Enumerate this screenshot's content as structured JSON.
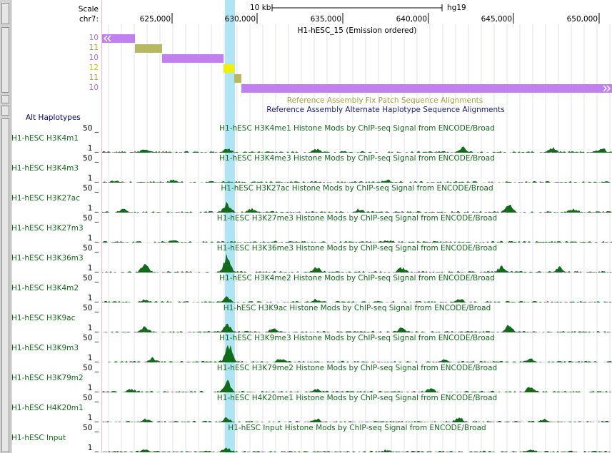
{
  "header": {
    "scale_label": "Scale",
    "chrom_label": "chr7:",
    "scale_bar_text": "10 kb",
    "assembly": "hg19",
    "ticks": [
      "625,000",
      "630,000",
      "635,000",
      "640,000",
      "645,000",
      "650,000"
    ],
    "chromhmm_title": "H1-hESC_15 (Emission ordered)"
  },
  "chromhmm_rows": [
    {
      "state": "10",
      "color": "#c080f0"
    },
    {
      "state": "11",
      "color": "#b8b860"
    },
    {
      "state": "10",
      "color": "#c080f0"
    },
    {
      "state": "12",
      "color": "#f0f000"
    },
    {
      "state": "11",
      "color": "#b8b860"
    },
    {
      "state": "10",
      "color": "#c080f0"
    }
  ],
  "patch_tracks": {
    "fix_title": "Reference Assembly Fix Patch Sequence Alignments",
    "alt_title": "Reference Assembly Alternate Haplotype Sequence Alignments",
    "alt_label": "Alt Haplotypes"
  },
  "signal_tracks": [
    {
      "label": "H1-hESC H3K4m1",
      "title": "H1-hESC H3K4me1 Histone Mods by ChIP-seq Signal from ENCODE/Broad",
      "max": "50 _",
      "min": "1 _"
    },
    {
      "label": "H1-hESC H3K4m3",
      "title": "H1-hESC H3K4me3 Histone Mods by ChIP-seq Signal from ENCODE/Broad",
      "max": "50 _",
      "min": "1 _"
    },
    {
      "label": "H1-hESC H3K27ac",
      "title": "H1-hESC H3K27ac Histone Mods by ChIP-seq Signal from ENCODE/Broad",
      "max": "50 _",
      "min": "1 _"
    },
    {
      "label": "H1-hESC H3K27m3",
      "title": "H1-hESC H3K27me3 Histone Mods by ChIP-seq Signal from ENCODE/Broad",
      "max": "50 _",
      "min": "1 _"
    },
    {
      "label": "H1-hESC H3K36m3",
      "title": "H1-hESC H3K36me3 Histone Mods by ChIP-seq Signal from ENCODE/Broad",
      "max": "50 _",
      "min": "1 _"
    },
    {
      "label": "H1-hESC H3K4m2",
      "title": "H1-hESC H3K4me2 Histone Mods by ChIP-seq Signal from ENCODE/Broad",
      "max": "50 _",
      "min": "1 _"
    },
    {
      "label": "H1-hESC H3K9ac",
      "title": "H1-hESC H3K9ac Histone Mods by ChIP-seq Signal from ENCODE/Broad",
      "max": "50 _",
      "min": "1 _"
    },
    {
      "label": "H1-hESC H3K9m3",
      "title": "H1-hESC H3K9me3 Histone Mods by ChIP-seq Signal from ENCODE/Broad",
      "max": "50 _",
      "min": "1 _"
    },
    {
      "label": "H1-hESC H3K79m2",
      "title": "H1-hESC H3K79me2 Histone Mods by ChIP-seq Signal from ENCODE/Broad",
      "max": "50 _",
      "min": "1 _"
    },
    {
      "label": "H1-hESC H4K20m1",
      "title": "H1-hESC H4K20me1 Histone Mods by ChIP-seq Signal from ENCODE/Broad",
      "max": "50 _",
      "min": "1 _"
    },
    {
      "label": "H1-hESC Input",
      "title": "H1-hESC Input Histone Mods by ChIP-seq Signal from ENCODE/Broad",
      "max": "50 _",
      "min": "1 _"
    }
  ],
  "colors": {
    "signal": "#126b1a",
    "highlight": "#aee4f4",
    "gridline": "#e2e2ee",
    "missing": "#d040d0"
  }
}
